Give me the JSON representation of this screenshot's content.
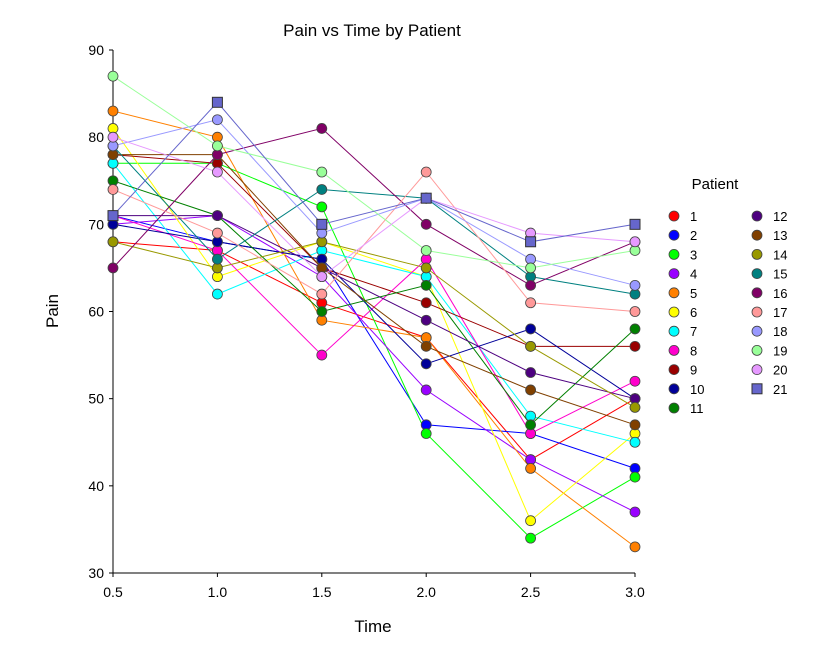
{
  "chart_data": {
    "type": "line",
    "title": "Pain vs Time by Patient",
    "xlabel": "Time",
    "ylabel": "Pain",
    "x": [
      0.5,
      1.0,
      1.5,
      2.0,
      2.5,
      3.0
    ],
    "x_tick_labels": [
      "0.5",
      "1.0",
      "1.5",
      "2.0",
      "2.5",
      "3.0"
    ],
    "xlim": [
      0.5,
      3.0
    ],
    "ylim": [
      30,
      90
    ],
    "y_ticks": [
      30,
      40,
      50,
      60,
      70,
      80,
      90
    ],
    "y_tick_labels": [
      "30",
      "40",
      "50",
      "60",
      "70",
      "80",
      "90"
    ],
    "grid": false,
    "legend_title": "Patient",
    "legend_position": "right",
    "series": [
      {
        "name": "1",
        "color": "#ff0000",
        "marker": "circle",
        "values": [
          68,
          67,
          61,
          57,
          43,
          50
        ]
      },
      {
        "name": "2",
        "color": "#0000ff",
        "marker": "circle",
        "values": [
          71,
          68,
          66,
          47,
          46,
          42
        ]
      },
      {
        "name": "3",
        "color": "#00ff00",
        "marker": "circle",
        "values": [
          77,
          77,
          72,
          46,
          34,
          41
        ]
      },
      {
        "name": "4",
        "color": "#9900ff",
        "marker": "circle",
        "values": [
          70,
          71,
          64,
          51,
          43,
          37
        ]
      },
      {
        "name": "5",
        "color": "#ff8000",
        "marker": "circle",
        "values": [
          83,
          80,
          59,
          57,
          42,
          33
        ]
      },
      {
        "name": "6",
        "color": "#ffff00",
        "marker": "circle",
        "values": [
          81,
          64,
          68,
          64,
          36,
          46
        ]
      },
      {
        "name": "7",
        "color": "#00ffff",
        "marker": "circle",
        "values": [
          77,
          62,
          67,
          64,
          48,
          45
        ]
      },
      {
        "name": "8",
        "color": "#ff00cc",
        "marker": "circle",
        "values": [
          71,
          67,
          55,
          66,
          46,
          52
        ]
      },
      {
        "name": "9",
        "color": "#990000",
        "marker": "circle",
        "values": [
          78,
          77,
          65,
          61,
          56,
          56
        ]
      },
      {
        "name": "10",
        "color": "#000099",
        "marker": "circle",
        "values": [
          70,
          68,
          66,
          54,
          58,
          50
        ]
      },
      {
        "name": "11",
        "color": "#008000",
        "marker": "circle",
        "values": [
          75,
          71,
          60,
          63,
          47,
          58
        ]
      },
      {
        "name": "12",
        "color": "#4d0080",
        "marker": "circle",
        "values": [
          71,
          71,
          65,
          59,
          53,
          50
        ]
      },
      {
        "name": "13",
        "color": "#804000",
        "marker": "circle",
        "values": [
          78,
          78,
          65,
          56,
          51,
          47
        ]
      },
      {
        "name": "14",
        "color": "#999900",
        "marker": "circle",
        "values": [
          68,
          65,
          68,
          65,
          56,
          49
        ]
      },
      {
        "name": "15",
        "color": "#008080",
        "marker": "circle",
        "values": [
          79,
          66,
          74,
          73,
          64,
          62
        ]
      },
      {
        "name": "16",
        "color": "#800066",
        "marker": "circle",
        "values": [
          65,
          78,
          81,
          70,
          63,
          68
        ]
      },
      {
        "name": "17",
        "color": "#ff9999",
        "marker": "circle",
        "values": [
          74,
          69,
          62,
          76,
          61,
          60
        ]
      },
      {
        "name": "18",
        "color": "#9999ff",
        "marker": "circle",
        "values": [
          79,
          82,
          69,
          73,
          66,
          63
        ]
      },
      {
        "name": "19",
        "color": "#99ff99",
        "marker": "circle",
        "values": [
          87,
          79,
          76,
          67,
          65,
          67
        ]
      },
      {
        "name": "20",
        "color": "#e699ff",
        "marker": "circle",
        "values": [
          80,
          76,
          64,
          73,
          69,
          68
        ]
      },
      {
        "name": "21",
        "color": "#6666cc",
        "marker": "square",
        "values": [
          71,
          84,
          70,
          73,
          68,
          70
        ]
      }
    ]
  }
}
